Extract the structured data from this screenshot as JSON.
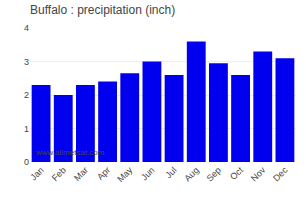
{
  "chart_data": {
    "type": "bar",
    "title": "Buffalo : precipitation (inch)",
    "categories": [
      "Jan",
      "Feb",
      "Mar",
      "Apr",
      "May",
      "Jun",
      "Jul",
      "Aug",
      "Sep",
      "Oct",
      "Nov",
      "Dec"
    ],
    "values": [
      2.3,
      2.0,
      2.3,
      2.4,
      2.65,
      3.0,
      2.6,
      3.6,
      2.95,
      2.6,
      3.3,
      3.1
    ],
    "color": "#0000EE",
    "ylim": [
      0,
      4
    ],
    "yticks": [
      0,
      1,
      2,
      3,
      4
    ],
    "grid": true,
    "annotations": [
      "www.allmetsat.com"
    ]
  }
}
